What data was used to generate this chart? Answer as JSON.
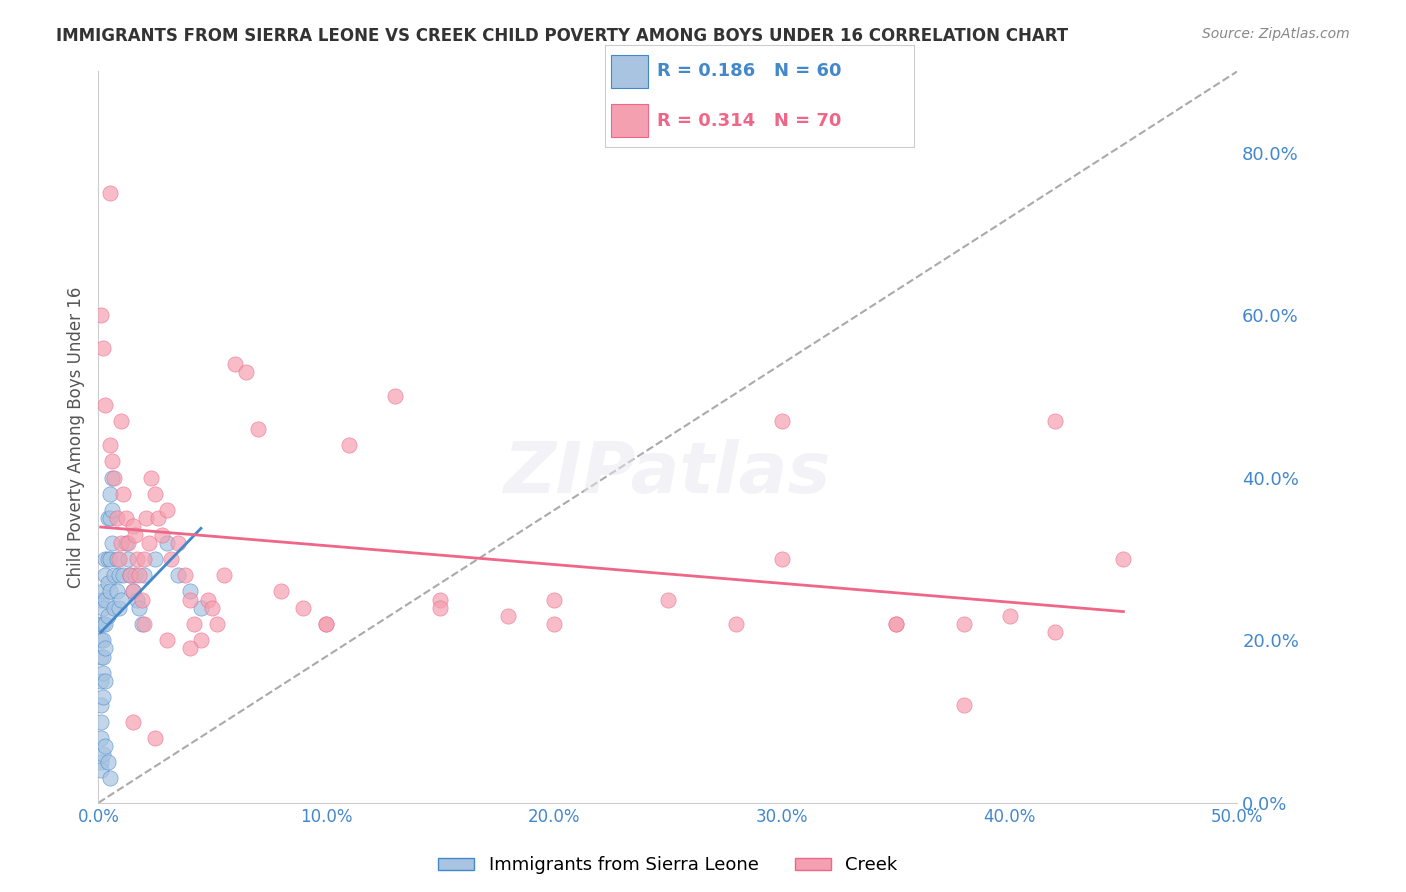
{
  "title": "IMMIGRANTS FROM SIERRA LEONE VS CREEK CHILD POVERTY AMONG BOYS UNDER 16 CORRELATION CHART",
  "source": "Source: ZipAtlas.com",
  "xlabel": "",
  "ylabel": "Child Poverty Among Boys Under 16",
  "legend_label1": "Immigrants from Sierra Leone",
  "legend_label2": "Creek",
  "R1": 0.186,
  "N1": 60,
  "R2": 0.314,
  "N2": 70,
  "color1": "#a8c4e0",
  "color2": "#f4a0b0",
  "line_color1": "#4488cc",
  "line_color2": "#ee6688",
  "axis_color": "#4488cc",
  "grid_color": "#cccccc",
  "xlim": [
    0.0,
    0.5
  ],
  "ylim": [
    0.0,
    0.9
  ],
  "yticks": [
    0.0,
    0.2,
    0.4,
    0.6,
    0.8
  ],
  "xticks": [
    0.0,
    0.1,
    0.2,
    0.3,
    0.4,
    0.5
  ],
  "blue_x": [
    0.001,
    0.001,
    0.001,
    0.001,
    0.001,
    0.001,
    0.001,
    0.001,
    0.001,
    0.002,
    0.002,
    0.002,
    0.002,
    0.002,
    0.002,
    0.002,
    0.003,
    0.003,
    0.003,
    0.003,
    0.003,
    0.003,
    0.004,
    0.004,
    0.004,
    0.004,
    0.005,
    0.005,
    0.005,
    0.005,
    0.006,
    0.006,
    0.006,
    0.007,
    0.007,
    0.008,
    0.008,
    0.009,
    0.009,
    0.01,
    0.011,
    0.012,
    0.013,
    0.014,
    0.015,
    0.016,
    0.017,
    0.018,
    0.019,
    0.02,
    0.025,
    0.03,
    0.035,
    0.04,
    0.045,
    0.001,
    0.002,
    0.003,
    0.004,
    0.005
  ],
  "blue_y": [
    0.22,
    0.25,
    0.2,
    0.18,
    0.15,
    0.12,
    0.1,
    0.08,
    0.05,
    0.26,
    0.24,
    0.22,
    0.2,
    0.18,
    0.16,
    0.13,
    0.3,
    0.28,
    0.25,
    0.22,
    0.19,
    0.15,
    0.35,
    0.3,
    0.27,
    0.23,
    0.38,
    0.35,
    0.3,
    0.26,
    0.4,
    0.36,
    0.32,
    0.28,
    0.24,
    0.3,
    0.26,
    0.28,
    0.24,
    0.25,
    0.28,
    0.32,
    0.3,
    0.28,
    0.26,
    0.28,
    0.25,
    0.24,
    0.22,
    0.28,
    0.3,
    0.32,
    0.28,
    0.26,
    0.24,
    0.04,
    0.06,
    0.07,
    0.05,
    0.03
  ],
  "pink_x": [
    0.001,
    0.002,
    0.003,
    0.005,
    0.006,
    0.007,
    0.008,
    0.009,
    0.01,
    0.01,
    0.011,
    0.012,
    0.013,
    0.014,
    0.015,
    0.015,
    0.016,
    0.017,
    0.018,
    0.019,
    0.02,
    0.021,
    0.022,
    0.023,
    0.025,
    0.026,
    0.028,
    0.03,
    0.032,
    0.035,
    0.038,
    0.04,
    0.042,
    0.045,
    0.048,
    0.05,
    0.052,
    0.055,
    0.06,
    0.065,
    0.07,
    0.08,
    0.09,
    0.1,
    0.11,
    0.13,
    0.15,
    0.18,
    0.2,
    0.25,
    0.28,
    0.3,
    0.35,
    0.38,
    0.4,
    0.42,
    0.45,
    0.3,
    0.35,
    0.38,
    0.42,
    0.1,
    0.15,
    0.2,
    0.02,
    0.03,
    0.04,
    0.015,
    0.025,
    0.005
  ],
  "pink_y": [
    0.6,
    0.56,
    0.49,
    0.44,
    0.42,
    0.4,
    0.35,
    0.3,
    0.47,
    0.32,
    0.38,
    0.35,
    0.32,
    0.28,
    0.26,
    0.34,
    0.33,
    0.3,
    0.28,
    0.25,
    0.3,
    0.35,
    0.32,
    0.4,
    0.38,
    0.35,
    0.33,
    0.36,
    0.3,
    0.32,
    0.28,
    0.25,
    0.22,
    0.2,
    0.25,
    0.24,
    0.22,
    0.28,
    0.54,
    0.53,
    0.46,
    0.26,
    0.24,
    0.22,
    0.44,
    0.5,
    0.25,
    0.23,
    0.22,
    0.25,
    0.22,
    0.3,
    0.22,
    0.12,
    0.23,
    0.21,
    0.3,
    0.47,
    0.22,
    0.22,
    0.47,
    0.22,
    0.24,
    0.25,
    0.22,
    0.2,
    0.19,
    0.1,
    0.08,
    0.75
  ]
}
